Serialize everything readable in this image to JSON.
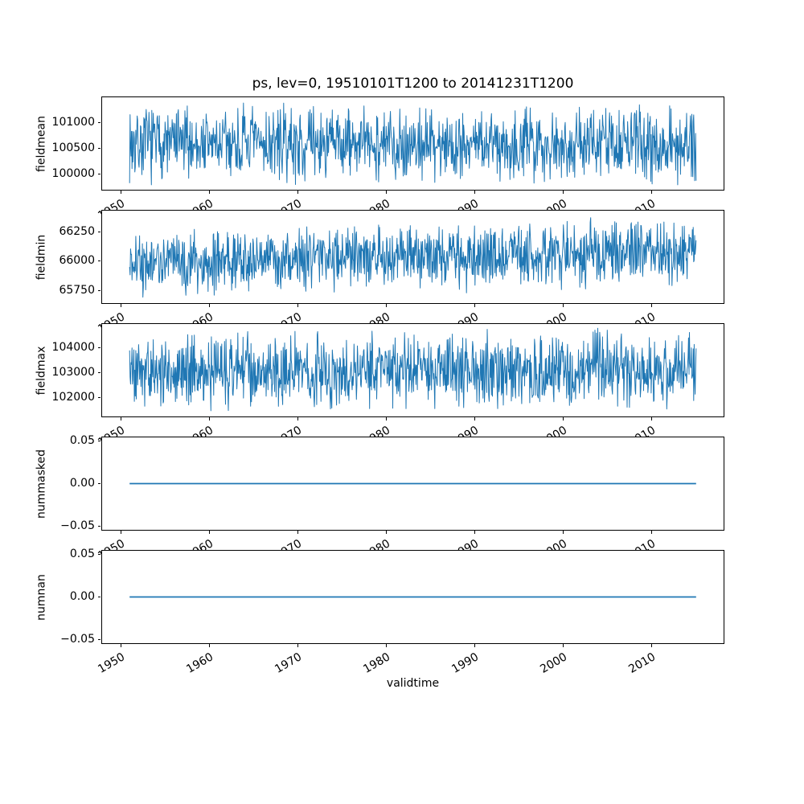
{
  "figure": {
    "title": "ps, lev=0, 19510101T1200 to 20141231T1200",
    "xlabel": "validtime",
    "line_color": "#1f77b4",
    "axes_color": "#000000",
    "text_color": "#000000",
    "background": "#ffffff"
  },
  "chart_data": [
    {
      "type": "line",
      "name": "fieldmean",
      "ylabel": "fieldmean",
      "yticks": [
        100000,
        100500,
        101000
      ],
      "yticklabels": [
        "100000",
        "100500",
        "101000"
      ],
      "ylim": [
        99675,
        101515
      ],
      "xticks": [
        1950,
        1960,
        1970,
        1980,
        1990,
        2000,
        2010
      ],
      "xticklabels": [
        "1950",
        "1960",
        "1970",
        "1980",
        "1990",
        "2000",
        "2010"
      ],
      "xlim": [
        1947.8,
        2018.2
      ],
      "x_range": [
        1951,
        2015
      ],
      "grid": false,
      "legend": null,
      "summary": {
        "approx_mean": 100595,
        "observed_min": 99760,
        "observed_max": 101430,
        "character": "dense high-frequency noise band, no trend"
      },
      "synthesis": {
        "n_points": 1200,
        "center": 100595,
        "trend_total": 0,
        "half_band": 836,
        "noise_model": "triangular",
        "seed": 7
      }
    },
    {
      "type": "line",
      "name": "fieldmin",
      "ylabel": "fieldmin",
      "yticks": [
        65750,
        66000,
        66250
      ],
      "yticklabels": [
        "65750",
        "66000",
        "66250"
      ],
      "ylim": [
        65636,
        66437
      ],
      "xticks": [
        1950,
        1960,
        1970,
        1980,
        1990,
        2000,
        2010
      ],
      "xticklabels": [
        "1950",
        "1960",
        "1970",
        "1980",
        "1990",
        "2000",
        "2010"
      ],
      "xlim": [
        1947.8,
        2018.2
      ],
      "x_range": [
        1951,
        2015
      ],
      "grid": false,
      "legend": null,
      "summary": {
        "approx_mean": 66036,
        "observed_min": 65670,
        "observed_max": 66400,
        "character": "dense noise band with slight upward trend toward 2015"
      },
      "synthesis": {
        "n_points": 1200,
        "center": 66036,
        "trend_total": 95,
        "half_band": 316,
        "noise_model": "triangular",
        "seed": 21
      }
    },
    {
      "type": "line",
      "name": "fieldmax",
      "ylabel": "fieldmax",
      "yticks": [
        102000,
        103000,
        104000
      ],
      "yticklabels": [
        "102000",
        "103000",
        "104000"
      ],
      "ylim": [
        101213,
        104970
      ],
      "xticks": [
        1950,
        1960,
        1970,
        1980,
        1990,
        2000,
        2010
      ],
      "xticklabels": [
        "1950",
        "1960",
        "1970",
        "1980",
        "1990",
        "2000",
        "2010"
      ],
      "xlim": [
        1947.8,
        2018.2
      ],
      "x_range": [
        1951,
        2015
      ],
      "grid": false,
      "legend": null,
      "summary": {
        "approx_mean": 103091,
        "observed_min": 101400,
        "observed_max": 104790,
        "character": "dense high-frequency noise band, no trend"
      },
      "synthesis": {
        "n_points": 1200,
        "center": 103091,
        "trend_total": 0,
        "half_band": 1707,
        "noise_model": "triangular",
        "seed": 5
      }
    },
    {
      "type": "line",
      "name": "nummasked",
      "ylabel": "nummasked",
      "yticks": [
        -0.05,
        0.0,
        0.05
      ],
      "yticklabels": [
        "−0.05",
        "0.00",
        "0.05"
      ],
      "ylim": [
        -0.055,
        0.055
      ],
      "xticks": [
        1950,
        1960,
        1970,
        1980,
        1990,
        2000,
        2010
      ],
      "xticklabels": [
        "1950",
        "1960",
        "1970",
        "1980",
        "1990",
        "2000",
        "2010"
      ],
      "xlim": [
        1947.8,
        2018.2
      ],
      "x_range": [
        1951,
        2015
      ],
      "grid": false,
      "legend": null,
      "summary": {
        "constant_value": 0.0,
        "character": "flat line at zero"
      },
      "synthesis": {
        "flat_value": 0.0
      }
    },
    {
      "type": "line",
      "name": "numnan",
      "ylabel": "numnan",
      "yticks": [
        -0.05,
        0.0,
        0.05
      ],
      "yticklabels": [
        "−0.05",
        "0.00",
        "0.05"
      ],
      "ylim": [
        -0.055,
        0.055
      ],
      "xticks": [
        1950,
        1960,
        1970,
        1980,
        1990,
        2000,
        2010
      ],
      "xticklabels": [
        "1950",
        "1960",
        "1970",
        "1980",
        "1990",
        "2000",
        "2010"
      ],
      "xlim": [
        1947.8,
        2018.2
      ],
      "x_range": [
        1951,
        2015
      ],
      "grid": false,
      "legend": null,
      "summary": {
        "constant_value": 0.0,
        "character": "flat line at zero"
      },
      "synthesis": {
        "flat_value": 0.0
      }
    }
  ]
}
